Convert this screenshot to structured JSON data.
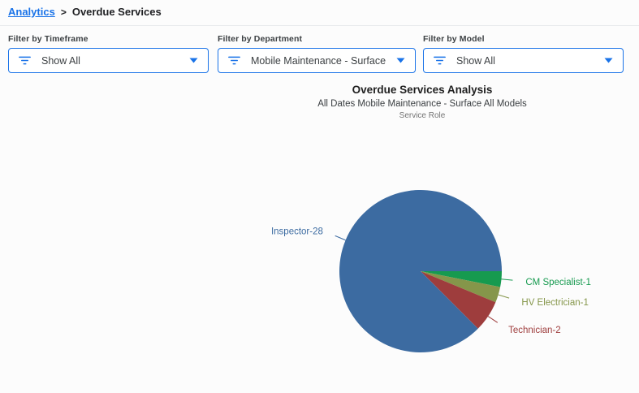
{
  "breadcrumb": {
    "link": "Analytics",
    "separator": ">",
    "current": "Overdue Services"
  },
  "filters": [
    {
      "label": "Filter by Timeframe",
      "value": "Show All",
      "icon": "filter-icon",
      "caret": "caret-down-icon"
    },
    {
      "label": "Filter by Department",
      "value": "Mobile Maintenance - Surface",
      "icon": "filter-icon",
      "caret": "caret-down-icon"
    },
    {
      "label": "Filter by Model",
      "value": "Show All",
      "icon": "filter-icon",
      "caret": "caret-down-icon"
    }
  ],
  "colors": {
    "accent_blue": "#1a73e8",
    "breadcrumb_text": "#202124",
    "filter_label_text": "#3c4043",
    "divider": "#e8eaed",
    "title_text": "#1f1f1f",
    "subtitle_text": "#3c4043",
    "dimension_text": "#757575"
  },
  "chart_data": {
    "type": "pie",
    "title": "Overdue Services Analysis",
    "subtitle": "All Dates Mobile Maintenance - Surface All Models",
    "series_label": "Service Role",
    "total": 32,
    "start_angle_deg": 0,
    "direction": "clockwise",
    "labels_position": "outside-with-leader-lines",
    "slices": [
      {
        "label": "CM Specialist",
        "value": 1,
        "display": "CM Specialist-1",
        "color": "#169a4f"
      },
      {
        "label": "HV Electrician",
        "value": 1,
        "display": "HV Electrician-1",
        "color": "#85964a"
      },
      {
        "label": "Technician",
        "value": 2,
        "display": "Technician-2",
        "color": "#9e3d3d"
      },
      {
        "label": "Inspector",
        "value": 28,
        "display": "Inspector-28",
        "color": "#3c6ba1"
      }
    ]
  }
}
